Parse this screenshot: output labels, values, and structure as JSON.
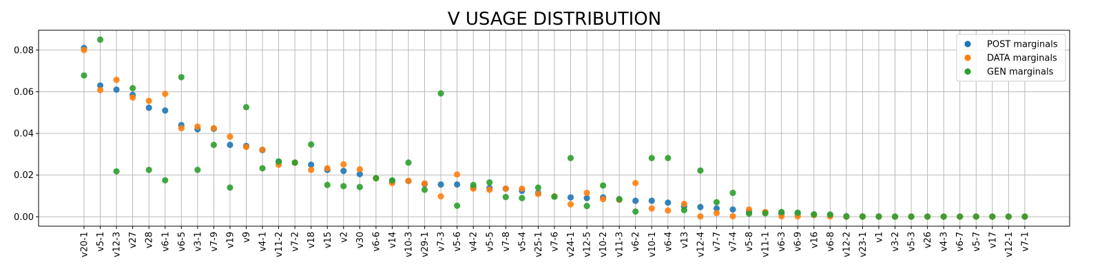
{
  "chart_data": {
    "type": "scatter",
    "title": "V USAGE DISTRIBUTION",
    "xlabel": "",
    "ylabel": "",
    "ylim": [
      -0.0045,
      0.0895
    ],
    "yticks": [
      "0.00",
      "0.02",
      "0.04",
      "0.06",
      "0.08"
    ],
    "grid": true,
    "legend_position": "top-right",
    "categories": [
      "v20-1",
      "v5-1",
      "v12-3",
      "v27",
      "v28",
      "v6-1",
      "v6-5",
      "v3-1",
      "v7-9",
      "v19",
      "v9",
      "v4-1",
      "v11-2",
      "v7-2",
      "v18",
      "v15",
      "v2",
      "v30",
      "v6-6",
      "v14",
      "v10-3",
      "v29-1",
      "v7-3",
      "v5-6",
      "v4-2",
      "v5-5",
      "v7-8",
      "v5-4",
      "v25-1",
      "v7-6",
      "v24-1",
      "v12-5",
      "v10-2",
      "v11-3",
      "v6-2",
      "v10-1",
      "v6-4",
      "v13",
      "v12-4",
      "v7-7",
      "v7-4",
      "v5-8",
      "v11-1",
      "v6-3",
      "v6-9",
      "v16",
      "v6-8",
      "v12-2",
      "v23-1",
      "v1",
      "v3-2",
      "v5-3",
      "v26",
      "v4-3",
      "v6-7",
      "v5-7",
      "v17",
      "v12-1",
      "v7-1"
    ],
    "series": [
      {
        "name": "POST marginals",
        "color": "#1f77b4",
        "values": [
          0.081,
          0.063,
          0.061,
          0.0585,
          0.0523,
          0.051,
          0.044,
          0.042,
          0.0422,
          0.0345,
          0.034,
          0.032,
          0.0265,
          0.026,
          0.025,
          0.0225,
          0.022,
          0.0205,
          0.0185,
          0.017,
          0.0172,
          0.0157,
          0.0155,
          0.0155,
          0.014,
          0.0138,
          0.0135,
          0.0125,
          0.0115,
          0.0097,
          0.0093,
          0.009,
          0.0093,
          0.0082,
          0.0077,
          0.0077,
          0.0068,
          0.005,
          0.0047,
          0.004,
          0.0035,
          0.0025,
          0.002,
          0.0015,
          0.0015,
          0.001,
          0.0007,
          0.0003,
          0.0002,
          0.0002,
          0.0001,
          0.0001,
          0.0001,
          0.0001,
          0.0001,
          0.0001,
          0.0001,
          0.0001,
          0.0001
        ]
      },
      {
        "name": "DATA marginals",
        "color": "#ff7f0e",
        "values": [
          0.08,
          0.0608,
          0.0657,
          0.0572,
          0.0556,
          0.059,
          0.0425,
          0.0433,
          0.0425,
          0.0385,
          0.0335,
          0.0322,
          0.025,
          0.026,
          0.0225,
          0.0233,
          0.0252,
          0.0228,
          0.0185,
          0.0162,
          0.0172,
          0.016,
          0.0098,
          0.0203,
          0.0135,
          0.013,
          0.0135,
          0.0135,
          0.011,
          0.0098,
          0.006,
          0.0115,
          0.0085,
          0.0082,
          0.0162,
          0.004,
          0.003,
          0.0062,
          0.0002,
          0.0018,
          0.0003,
          0.0035,
          0.0023,
          0.0003,
          0.0002,
          0.0008,
          0.0002,
          0.0001,
          0.0001,
          0.0001,
          0.0001,
          0.0001,
          0.0001,
          0.0001,
          0.0001,
          0.0001,
          0.0001,
          0.0001,
          0.0001
        ]
      },
      {
        "name": "GEN marginals",
        "color": "#2ca02c",
        "values": [
          0.0678,
          0.085,
          0.0218,
          0.0617,
          0.0225,
          0.0175,
          0.067,
          0.0225,
          0.0345,
          0.014,
          0.0526,
          0.0233,
          0.0265,
          0.026,
          0.0347,
          0.0153,
          0.0147,
          0.0143,
          0.0185,
          0.0175,
          0.026,
          0.013,
          0.0592,
          0.0053,
          0.0153,
          0.0165,
          0.0095,
          0.009,
          0.014,
          0.0097,
          0.0282,
          0.0052,
          0.015,
          0.0085,
          0.0025,
          0.0282,
          0.0282,
          0.0032,
          0.0222,
          0.007,
          0.0115,
          0.0015,
          0.0017,
          0.0023,
          0.002,
          0.0012,
          0.0011,
          0.0001,
          0.0001,
          0.0001,
          0.0001,
          0.0001,
          0.0001,
          0.0001,
          0.0001,
          0.0001,
          0.0001,
          0.0001,
          0.0001
        ]
      }
    ]
  }
}
